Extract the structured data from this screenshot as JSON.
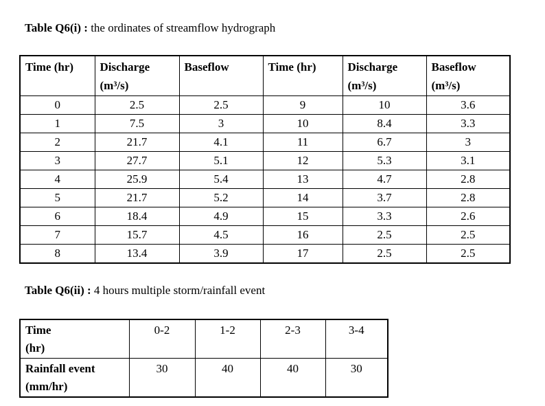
{
  "page": {
    "background": "#ffffff",
    "text_color": "#000000",
    "border_color": "#000000"
  },
  "table1": {
    "title_bold": "Table Q6(i) :",
    "title_rest": " the ordinates of streamflow hydrograph",
    "headers": [
      {
        "line1": "Time (hr)",
        "line2": ""
      },
      {
        "line1": "Discharge",
        "line2": "(m³/s)"
      },
      {
        "line1": "Baseflow",
        "line2": ""
      },
      {
        "line1": "Time (hr)",
        "line2": ""
      },
      {
        "line1": "Discharge",
        "line2": "(m³/s)"
      },
      {
        "line1": "Baseflow",
        "line2": "(m³/s)"
      }
    ],
    "rows": [
      [
        "0",
        "2.5",
        "2.5",
        "9",
        "10",
        "3.6"
      ],
      [
        "1",
        "7.5",
        "3",
        "10",
        "8.4",
        "3.3"
      ],
      [
        "2",
        "21.7",
        "4.1",
        "11",
        "6.7",
        "3"
      ],
      [
        "3",
        "27.7",
        "5.1",
        "12",
        "5.3",
        "3.1"
      ],
      [
        "4",
        "25.9",
        "5.4",
        "13",
        "4.7",
        "2.8"
      ],
      [
        "5",
        "21.7",
        "5.2",
        "14",
        "3.7",
        "2.8"
      ],
      [
        "6",
        "18.4",
        "4.9",
        "15",
        "3.3",
        "2.6"
      ],
      [
        "7",
        "15.7",
        "4.5",
        "16",
        "2.5",
        "2.5"
      ],
      [
        "8",
        "13.4",
        "3.9",
        "17",
        "2.5",
        "2.5"
      ]
    ]
  },
  "table2": {
    "title_bold": "Table Q6(ii) :",
    "title_rest": " 4 hours multiple storm/rainfall event",
    "row1_label_line1": "Time",
    "row1_label_line2": "(hr)",
    "row1_values": [
      "0-2",
      "1-2",
      "2-3",
      "3-4"
    ],
    "row2_label_line1": "Rainfall event",
    "row2_label_line2": "(mm/hr)",
    "row2_values": [
      "30",
      "40",
      "40",
      "30"
    ]
  }
}
